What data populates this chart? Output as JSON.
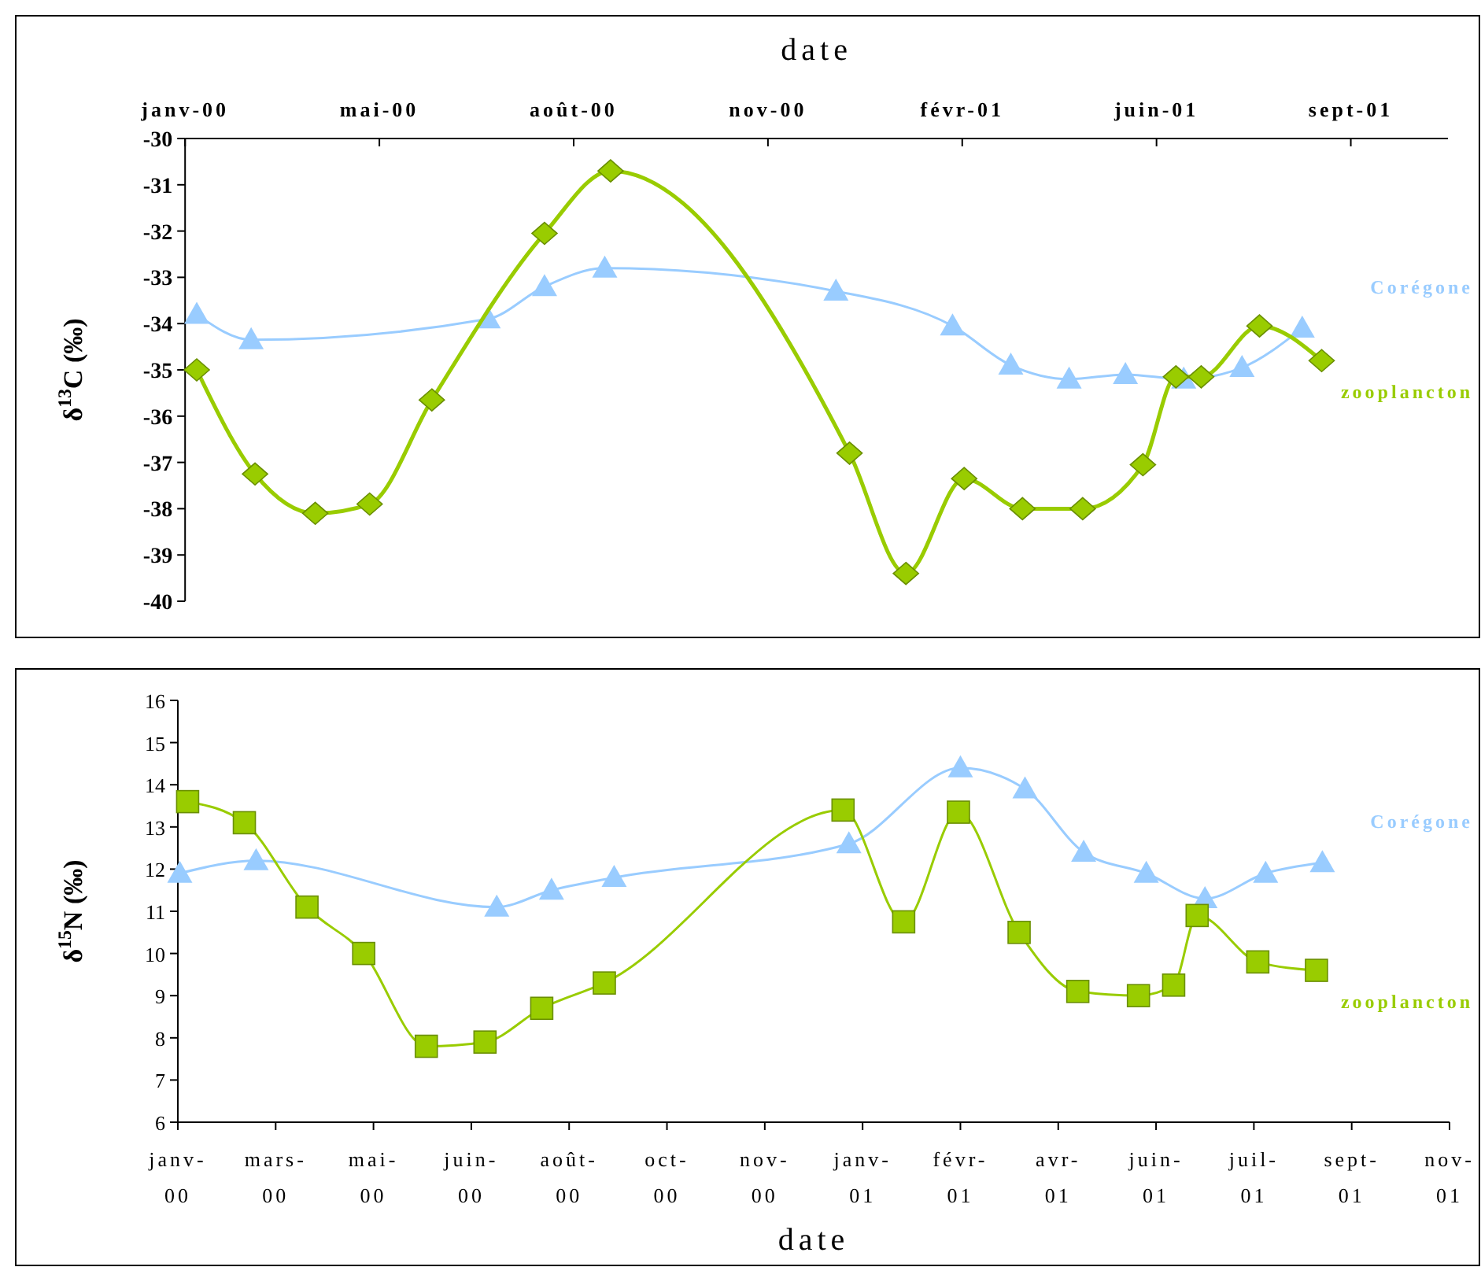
{
  "chart_data": [
    {
      "type": "line",
      "xlabel": "date",
      "ylabel": "δ$^{13}$C (‰)",
      "xlim": [
        "2000-01-25",
        "2001-11-05"
      ],
      "xticks": [
        {
          "value": "2000-01-25",
          "label": "janv-00"
        },
        {
          "value": "2000-05-04",
          "label": "mai-00"
        },
        {
          "value": "2000-08-12",
          "label": "août-00"
        },
        {
          "value": "2000-11-20",
          "label": "nov-00"
        },
        {
          "value": "2001-02-28",
          "label": "févr-01"
        },
        {
          "value": "2001-06-08",
          "label": "juin-01"
        },
        {
          "value": "2001-09-16",
          "label": "sept-01"
        }
      ],
      "ylim": [
        -40,
        -30
      ],
      "yticks": [
        -40,
        -39,
        -38,
        -37,
        -36,
        -35,
        -34,
        -33,
        -32,
        -31,
        -30
      ],
      "series": [
        {
          "name": "Corégone",
          "color": "#99ccff",
          "marker": "triangle",
          "x": [
            "2000-01-31",
            "2000-02-28",
            "2000-06-29",
            "2000-07-28",
            "2000-08-28",
            "2000-12-25",
            "2001-02-23",
            "2001-03-25",
            "2001-04-24",
            "2001-05-23",
            "2001-06-22",
            "2001-07-22",
            "2001-08-22"
          ],
          "values": [
            -33.8,
            -34.35,
            -33.9,
            -33.2,
            -32.8,
            -33.3,
            -34.05,
            -34.9,
            -35.2,
            -35.1,
            -35.2,
            -34.95,
            -34.1
          ]
        },
        {
          "name": "zooplancton",
          "color": "#99cc00",
          "marker": "diamond",
          "x": [
            "2000-01-31",
            "2000-03-01",
            "2000-04-01",
            "2000-04-29",
            "2000-05-31",
            "2000-07-28",
            "2000-08-31",
            "2001-01-01",
            "2001-01-30",
            "2001-03-01",
            "2001-03-31",
            "2001-05-01",
            "2001-06-01",
            "2001-06-18",
            "2001-07-01",
            "2001-07-31",
            "2001-09-01"
          ],
          "values": [
            -35.0,
            -37.25,
            -38.1,
            -37.9,
            -35.65,
            -32.05,
            -30.7,
            -36.8,
            -39.4,
            -37.35,
            -38.0,
            -38.0,
            -37.05,
            -35.15,
            -35.15,
            -34.05,
            -34.8
          ]
        }
      ]
    },
    {
      "type": "line",
      "xlabel": "date",
      "ylabel": "δ$^{15}$N (‰)",
      "xlim": [
        "2000-01-25",
        "2001-11-05"
      ],
      "xticks": [
        {
          "value": "2000-01-25",
          "label": "janv-00"
        },
        {
          "value": "2000-03-15",
          "label": "mars-00"
        },
        {
          "value": "2000-05-04",
          "label": "mai-00"
        },
        {
          "value": "2000-06-23",
          "label": "juin-00"
        },
        {
          "value": "2000-08-12",
          "label": "août-00"
        },
        {
          "value": "2000-10-01",
          "label": "oct-00"
        },
        {
          "value": "2000-11-20",
          "label": "nov-00"
        },
        {
          "value": "2001-01-09",
          "label": "janv-01"
        },
        {
          "value": "2001-02-28",
          "label": "févr-01"
        },
        {
          "value": "2001-04-19",
          "label": "avr-01"
        },
        {
          "value": "2001-06-08",
          "label": "juin-01"
        },
        {
          "value": "2001-07-28",
          "label": "juil-01"
        },
        {
          "value": "2001-09-16",
          "label": "sept-01"
        },
        {
          "value": "2001-11-05",
          "label": "nov-01"
        }
      ],
      "ylim": [
        6,
        16
      ],
      "yticks": [
        6,
        7,
        8,
        9,
        10,
        11,
        12,
        13,
        14,
        15,
        16
      ],
      "series": [
        {
          "name": "Corégone",
          "color": "#99ccff",
          "marker": "triangle",
          "x": [
            "2000-01-26",
            "2000-03-05",
            "2000-07-06",
            "2000-08-03",
            "2000-09-04",
            "2001-01-02",
            "2001-02-28",
            "2001-04-02",
            "2001-05-02",
            "2001-06-03",
            "2001-07-03",
            "2001-08-03",
            "2001-09-01"
          ],
          "values": [
            11.9,
            12.2,
            11.1,
            11.5,
            11.8,
            12.6,
            14.4,
            13.9,
            12.4,
            11.9,
            11.3,
            11.9,
            12.15
          ]
        },
        {
          "name": "zooplancton",
          "color": "#99cc00",
          "marker": "square",
          "x": [
            "2000-01-30",
            "2000-02-28",
            "2000-03-31",
            "2000-04-29",
            "2000-05-31",
            "2000-06-30",
            "2000-07-29",
            "2000-08-30",
            "2000-12-30",
            "2001-01-30",
            "2001-02-27",
            "2001-03-30",
            "2001-04-29",
            "2001-05-30",
            "2001-06-17",
            "2001-06-29",
            "2001-07-30",
            "2001-08-29"
          ],
          "values": [
            13.6,
            13.1,
            11.1,
            10.0,
            7.8,
            7.9,
            8.7,
            9.3,
            13.4,
            10.75,
            13.35,
            10.5,
            9.1,
            9.0,
            9.25,
            10.9,
            9.8,
            9.6
          ]
        }
      ]
    }
  ]
}
